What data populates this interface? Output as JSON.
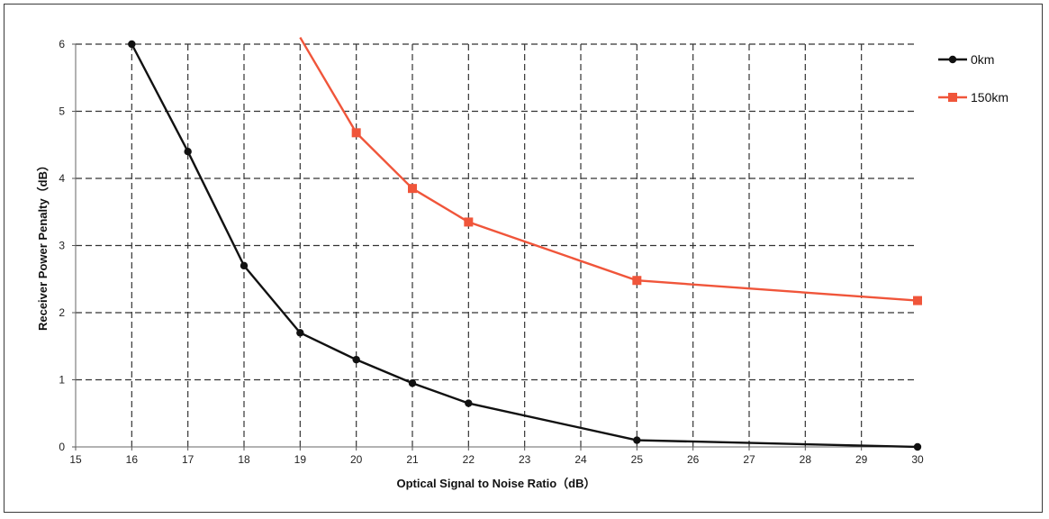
{
  "chart_data": {
    "type": "line",
    "title": "",
    "xlabel": "Optical Signal to Noise Ratio（dB）",
    "ylabel": "Receiver Power Penalty（dB）",
    "xlim": [
      15,
      30
    ],
    "ylim": [
      0,
      6
    ],
    "x_ticks": [
      "15",
      "16",
      "17",
      "18",
      "19",
      "20",
      "21",
      "22",
      "23",
      "24",
      "25",
      "26",
      "27",
      "28",
      "29",
      "30"
    ],
    "y_ticks": [
      "0",
      "1",
      "2",
      "3",
      "4",
      "5",
      "6"
    ],
    "grid": true,
    "legend_position": "right",
    "series": [
      {
        "name": "0km",
        "color": "#111111",
        "marker": "circle",
        "points": [
          [
            16,
            6.0
          ],
          [
            17,
            4.4
          ],
          [
            18,
            2.7
          ],
          [
            19,
            1.7
          ],
          [
            20,
            1.3
          ],
          [
            21,
            0.95
          ],
          [
            22,
            0.65
          ],
          [
            25,
            0.1
          ],
          [
            30,
            0.0
          ]
        ]
      },
      {
        "name": "150km",
        "color": "#f0553a",
        "marker": "square",
        "points": [
          [
            19,
            6.1
          ],
          [
            20,
            4.68
          ],
          [
            21,
            3.85
          ],
          [
            22,
            3.35
          ],
          [
            25,
            2.48
          ],
          [
            30,
            2.18
          ]
        ]
      }
    ]
  }
}
